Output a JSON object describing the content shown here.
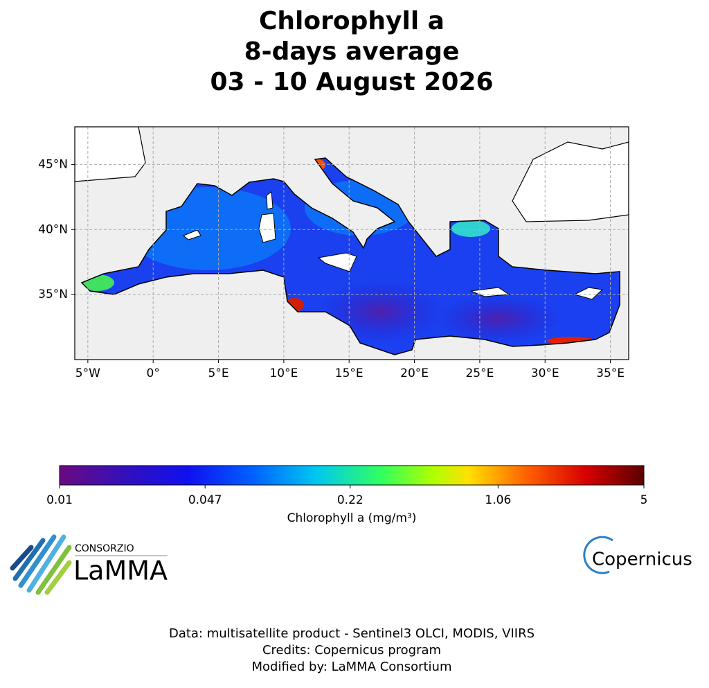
{
  "title": [
    "Chlorophyll a",
    "8-days average",
    "03 - 10 August 2026"
  ],
  "map": {
    "xlim": [
      -6,
      36.4
    ],
    "ylim": [
      30,
      47.9
    ],
    "xticks": [
      {
        "value": -5,
        "label": "5°W"
      },
      {
        "value": 0,
        "label": "0°"
      },
      {
        "value": 5,
        "label": "5°E"
      },
      {
        "value": 10,
        "label": "10°E"
      },
      {
        "value": 15,
        "label": "15°E"
      },
      {
        "value": 20,
        "label": "20°E"
      },
      {
        "value": 25,
        "label": "25°E"
      },
      {
        "value": 30,
        "label": "30°E"
      },
      {
        "value": 35,
        "label": "35°E"
      }
    ],
    "yticks": [
      {
        "value": 35,
        "label": "35°N"
      },
      {
        "value": 40,
        "label": "40°N"
      },
      {
        "value": 45,
        "label": "45°N"
      }
    ]
  },
  "colorbar": {
    "scale": "log",
    "lim": [
      0.01,
      5
    ],
    "ticks": [
      0.01,
      0.047,
      0.22,
      1.06,
      5
    ],
    "label": "Chlorophyll a (mg/m³)"
  },
  "logos": {
    "lamma_top": "CONSORZIO",
    "lamma_name": "LaMMA",
    "copernicus": "Copernicus"
  },
  "footer": [
    "Data: multisatellite product - Sentinel3 OLCI, MODIS, VIIRS",
    "Credits: Copernicus program",
    "Modified by: LaMMA Consortium"
  ]
}
